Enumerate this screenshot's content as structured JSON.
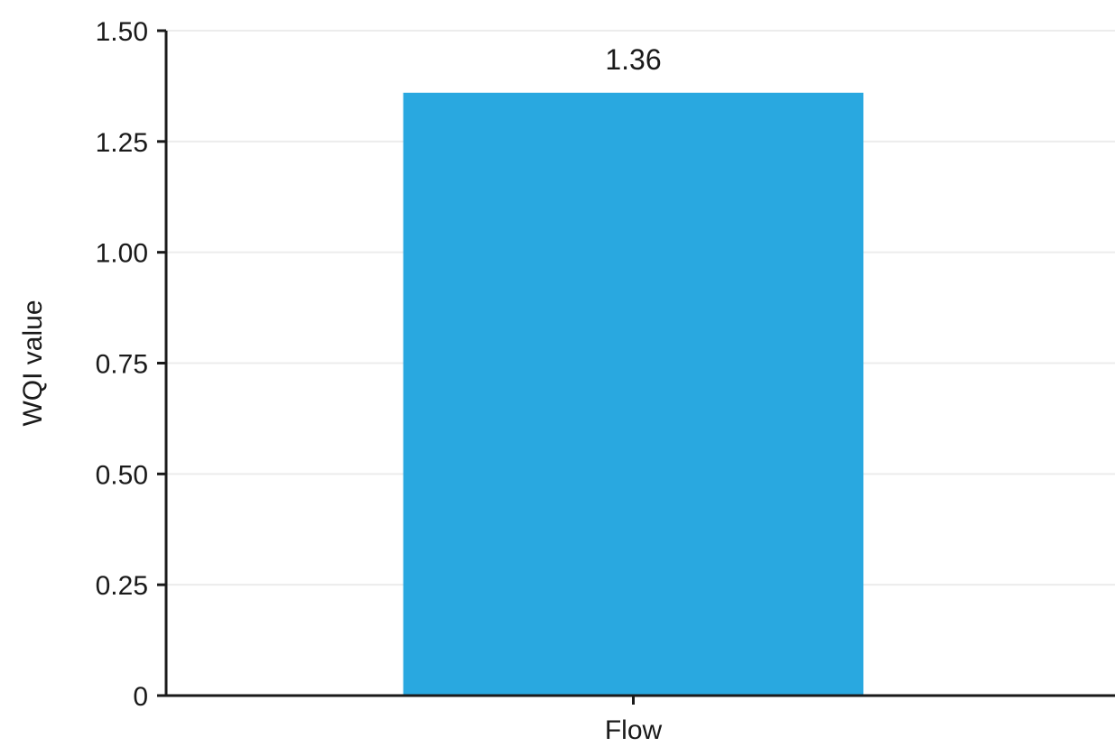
{
  "chart_data": {
    "type": "bar",
    "categories": [
      "Flow"
    ],
    "values": [
      1.36
    ],
    "data_labels": [
      "1.36"
    ],
    "ylabel": "WQI value",
    "xlabel": "",
    "ylim": [
      0,
      1.5
    ],
    "yticks": [
      0,
      0.25,
      0.5,
      0.75,
      1.0,
      1.25,
      1.5
    ],
    "ytick_labels": [
      "0",
      "0.25",
      "0.50",
      "0.75",
      "1.00",
      "1.25",
      "1.50"
    ],
    "grid": true,
    "colors": {
      "bar": "#29a8e0",
      "axis": "#1a1a1a",
      "grid": "#ececec"
    }
  }
}
